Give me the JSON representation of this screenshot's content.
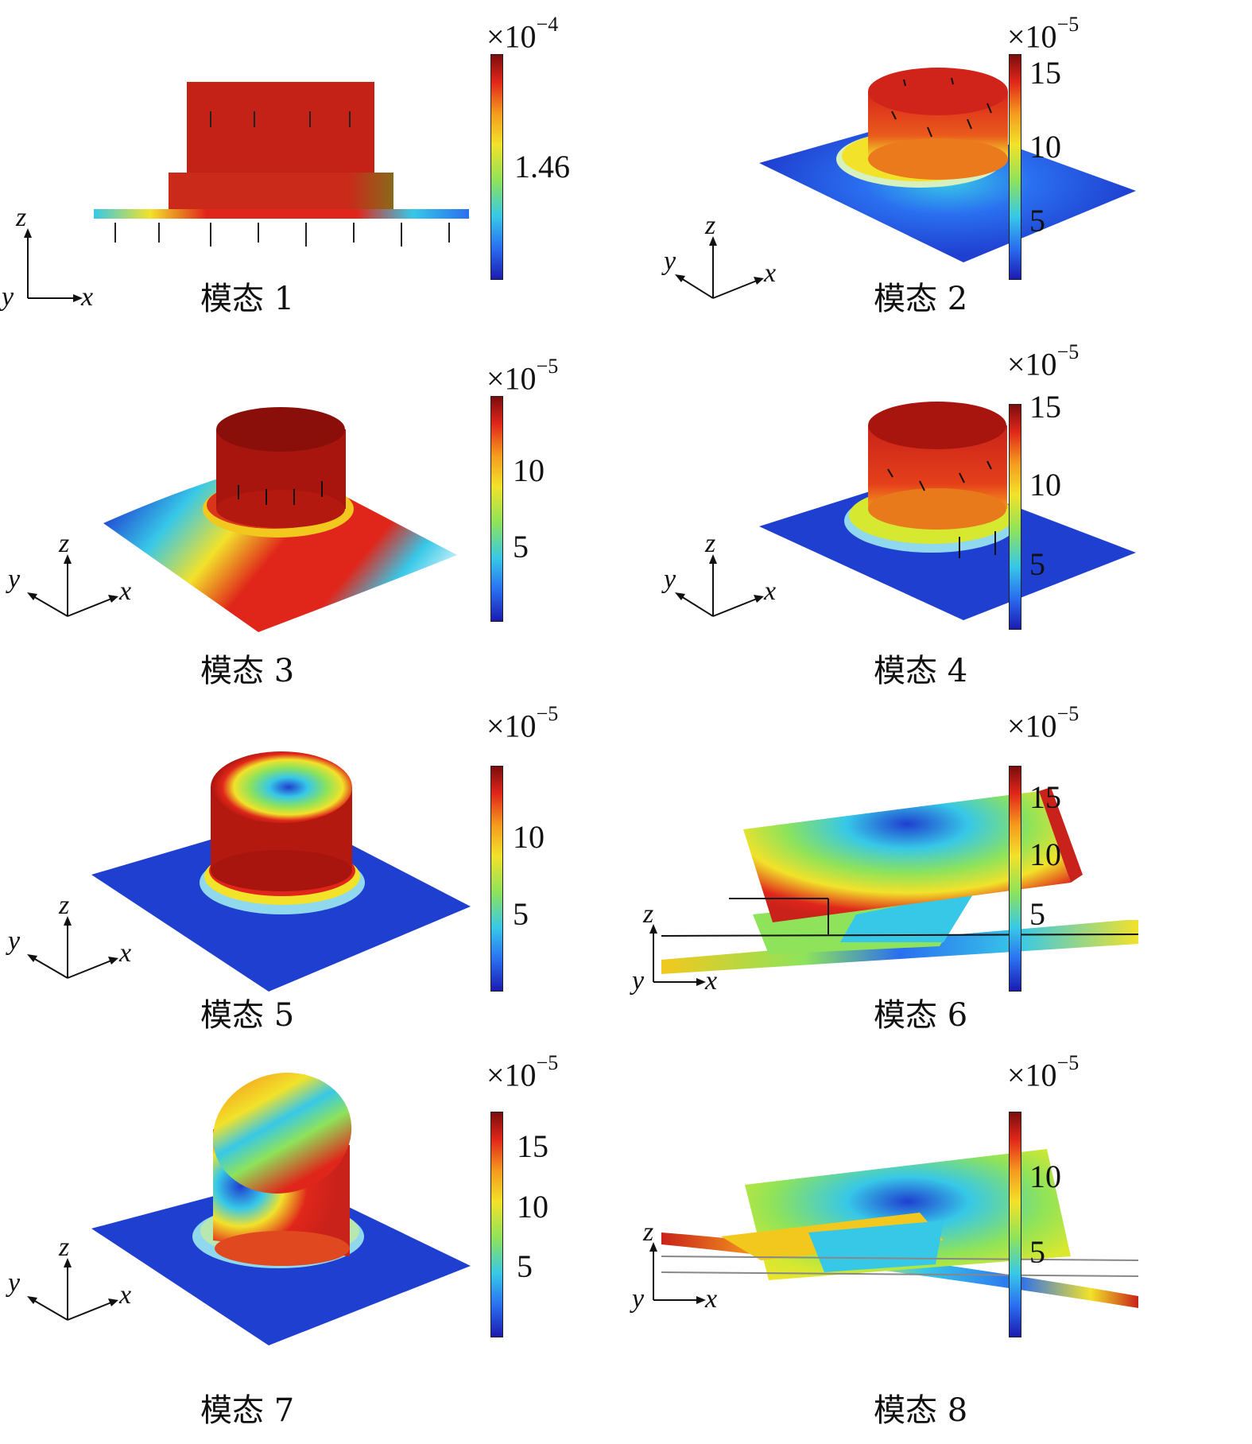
{
  "panels": [
    {
      "caption": "模态 1",
      "mantissa": "×10",
      "exponent": "−4",
      "ticks": [
        "1.46"
      ],
      "axes": {
        "x": "x",
        "y": "y",
        "z": "z"
      }
    },
    {
      "caption": "模态 2",
      "mantissa": "×10",
      "exponent": "−5",
      "ticks": [
        "15",
        "10",
        "5"
      ],
      "axes": {
        "x": "x",
        "y": "y",
        "z": "z"
      }
    },
    {
      "caption": "模态 3",
      "mantissa": "×10",
      "exponent": "−5",
      "ticks": [
        "10",
        "5"
      ],
      "axes": {
        "x": "x",
        "y": "y",
        "z": "z"
      }
    },
    {
      "caption": "模态 4",
      "mantissa": "×10",
      "exponent": "−5",
      "ticks": [
        "15",
        "10",
        "5"
      ],
      "axes": {
        "x": "x",
        "y": "y",
        "z": "z"
      }
    },
    {
      "caption": "模态 5",
      "mantissa": "×10",
      "exponent": "−5",
      "ticks": [
        "10",
        "5"
      ],
      "axes": {
        "x": "x",
        "y": "y",
        "z": "z"
      }
    },
    {
      "caption": "模态 6",
      "mantissa": "×10",
      "exponent": "−5",
      "ticks": [
        "15",
        "10",
        "5"
      ],
      "axes": {
        "x": "x",
        "y": "y",
        "z": "z"
      }
    },
    {
      "caption": "模态 7",
      "mantissa": "×10",
      "exponent": "−5",
      "ticks": [
        "15",
        "10",
        "5"
      ],
      "axes": {
        "x": "x",
        "y": "y",
        "z": "z"
      }
    },
    {
      "caption": "模态 8",
      "mantissa": "×10",
      "exponent": "−5",
      "ticks": [
        "10",
        "5"
      ],
      "axes": {
        "x": "x",
        "y": "y",
        "z": "z"
      }
    }
  ],
  "colormap": [
    "#1b1bb0",
    "#2a6ff0",
    "#37c8e8",
    "#8ee35a",
    "#f2e22a",
    "#f59a1e",
    "#e0261a",
    "#7a0d0d"
  ]
}
